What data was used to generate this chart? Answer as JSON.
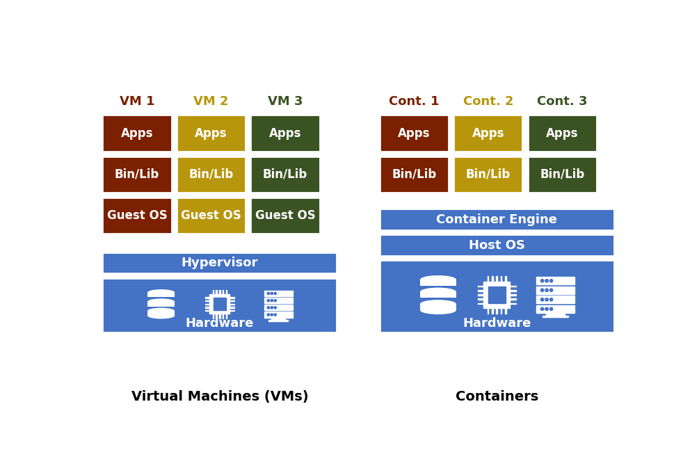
{
  "bg_color": "#ffffff",
  "blue": "#4472C4",
  "white": "#ffffff",
  "colors": [
    "#7B2000",
    "#B8960C",
    "#3B5323"
  ],
  "label_colors": [
    "#7B2000",
    "#B8960C",
    "#3B5323"
  ],
  "vm_titles": [
    "VM 1",
    "VM 2",
    "VM 3"
  ],
  "cont_titles": [
    "Cont. 1",
    "Cont. 2",
    "Cont. 3"
  ],
  "vm_rows": [
    "Apps",
    "Bin/Lib",
    "Guest OS"
  ],
  "cont_rows": [
    "Apps",
    "Bin/Lib"
  ],
  "hypervisor_label": "Hypervisor",
  "container_engine_label": "Container Engine",
  "host_os_label": "Host OS",
  "hardware_label": "Hardware",
  "vm_footer": "Virtual Machines (VMs)",
  "cont_footer": "Containers",
  "title_fontsize": 13,
  "cell_fontsize": 12,
  "footer_fontsize": 14,
  "bar_fontsize": 13
}
